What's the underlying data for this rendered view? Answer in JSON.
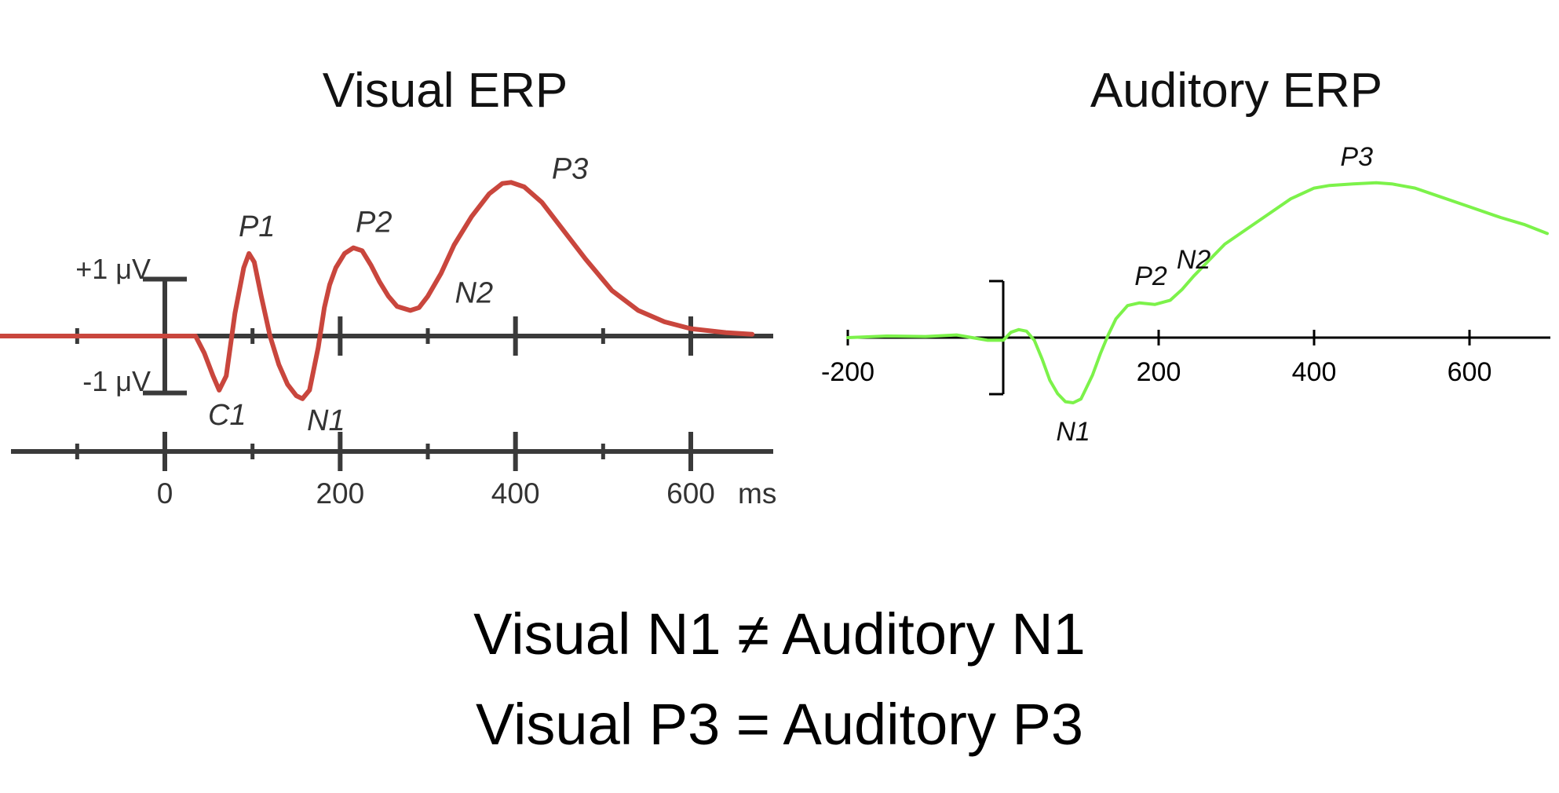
{
  "conclusions": {
    "line1": "Visual N1 ≠ Auditory N1",
    "line2": "Visual P3 = Auditory P3"
  },
  "chart_data": [
    {
      "type": "line",
      "title": "Visual ERP",
      "line_color": "#c9463d",
      "axis_color": "#3a3a3a",
      "time_unit": "ms",
      "xlim": [
        -220,
        700
      ],
      "ylim": [
        -1.6,
        2.6
      ],
      "x_tick_labels": [
        "0",
        "200",
        "400",
        "600"
      ],
      "x_tick_values": [
        0,
        200,
        400,
        600
      ],
      "minor_ticks": [
        -100,
        100,
        300,
        500
      ],
      "scale_bar": {
        "plus_label": "+1 μV",
        "minus_label": "-1 μV",
        "x": 0,
        "plus": 1,
        "minus": -1
      },
      "series": [
        {
          "values_x": [
            -220,
            -100,
            0,
            35,
            45,
            55,
            62,
            70,
            80,
            90,
            96,
            102,
            110,
            120,
            130,
            140,
            150,
            157,
            165,
            175,
            182,
            188,
            195,
            205,
            215,
            225,
            235,
            245,
            255,
            265,
            280,
            290,
            300,
            315,
            330,
            350,
            370,
            385,
            395,
            410,
            430,
            450,
            480,
            510,
            540,
            570,
            600,
            640,
            670
          ],
          "values_y": [
            0,
            0,
            0,
            0,
            -0.3,
            -0.7,
            -0.95,
            -0.7,
            0.4,
            1.2,
            1.45,
            1.3,
            0.7,
            0.0,
            -0.5,
            -0.85,
            -1.05,
            -1.1,
            -0.95,
            -0.2,
            0.5,
            0.9,
            1.2,
            1.45,
            1.55,
            1.5,
            1.25,
            0.95,
            0.7,
            0.52,
            0.45,
            0.5,
            0.7,
            1.1,
            1.6,
            2.1,
            2.5,
            2.68,
            2.7,
            2.62,
            2.35,
            1.95,
            1.35,
            0.8,
            0.45,
            0.25,
            0.13,
            0.06,
            0.03
          ]
        }
      ],
      "peak_labels": [
        {
          "text": "C1",
          "x": 62,
          "y": -0.95
        },
        {
          "text": "P1",
          "x": 96,
          "y": 1.45
        },
        {
          "text": "N1",
          "x": 157,
          "y": -1.1
        },
        {
          "text": "P2",
          "x": 225,
          "y": 1.55
        },
        {
          "text": "N2",
          "x": 290,
          "y": 0.45
        },
        {
          "text": "P3",
          "x": 395,
          "y": 2.7
        }
      ]
    },
    {
      "type": "line",
      "title": "Auditory ERP",
      "line_color": "#7cf24a",
      "axis_color": "#000000",
      "xlim": [
        -200,
        700
      ],
      "ylim": [
        -1.3,
        3.0
      ],
      "x_tick_labels": [
        "-200",
        "200",
        "400",
        "600"
      ],
      "x_tick_values": [
        -200,
        200,
        400,
        600
      ],
      "scale_bar": {
        "x": 0,
        "plus": 1,
        "minus": -1
      },
      "series": [
        {
          "values_x": [
            -200,
            -150,
            -100,
            -60,
            -20,
            0,
            10,
            20,
            30,
            40,
            50,
            60,
            70,
            80,
            90,
            100,
            105,
            115,
            125,
            135,
            145,
            160,
            175,
            195,
            215,
            230,
            245,
            265,
            285,
            310,
            340,
            370,
            400,
            420,
            450,
            480,
            500,
            530,
            560,
            600,
            640,
            670,
            700
          ],
          "values_y": [
            0,
            0.03,
            0.02,
            0.05,
            -0.05,
            -0.05,
            0.1,
            0.15,
            0.12,
            -0.05,
            -0.4,
            -0.8,
            -1.05,
            -1.2,
            -1.22,
            -1.15,
            -1.0,
            -0.7,
            -0.3,
            0.05,
            0.35,
            0.6,
            0.65,
            0.62,
            0.7,
            0.9,
            1.15,
            1.45,
            1.75,
            2.0,
            2.3,
            2.6,
            2.8,
            2.85,
            2.88,
            2.9,
            2.88,
            2.8,
            2.65,
            2.45,
            2.25,
            2.12,
            1.95
          ]
        }
      ],
      "peak_labels": [
        {
          "text": "N1",
          "x": 90,
          "y": -1.22
        },
        {
          "text": "P2",
          "x": 195,
          "y": 0.62
        },
        {
          "text": "N2",
          "x": 245,
          "y": 1.15
        },
        {
          "text": "P3",
          "x": 480,
          "y": 2.9
        }
      ]
    }
  ]
}
